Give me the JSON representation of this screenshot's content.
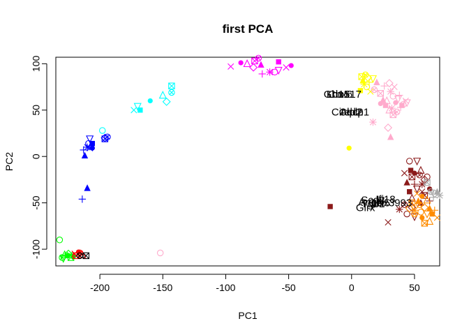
{
  "chart_data": {
    "type": "scatter",
    "title": "first PCA",
    "xlabel": "PC1",
    "ylabel": "PC2",
    "xlim": [
      -235,
      70
    ],
    "ylim": [
      -118,
      107
    ],
    "x_ticks": [
      -200,
      -150,
      -100,
      -50,
      0,
      50
    ],
    "y_ticks": [
      -100,
      -50,
      0,
      50,
      100
    ],
    "grid": false,
    "legend": "none",
    "colors": {
      "green": "#00ff00",
      "red": "#ff0000",
      "black": "#000000",
      "blue": "#0000ff",
      "cyan": "#00ffff",
      "magenta": "#ff00ff",
      "yellow": "#ffff00",
      "pink": "#ffaacc",
      "darkred": "#8b1a1a",
      "orange": "#ff8c00",
      "gray": "#a9a9a9"
    },
    "series": [
      {
        "color": "green",
        "points": [
          [
            -232,
            -90
          ],
          [
            -229,
            -110
          ],
          [
            -226,
            -107
          ],
          [
            -224,
            -106
          ],
          [
            -221,
            -108
          ],
          [
            -228,
            -106
          ],
          [
            -223,
            -109
          ],
          [
            -230,
            -109
          ],
          [
            -225,
            -105
          ]
        ]
      },
      {
        "color": "red",
        "points": [
          [
            -220,
            -105
          ],
          [
            -217,
            -103
          ],
          [
            -214,
            -106
          ],
          [
            -219,
            -107
          ],
          [
            -216,
            -104
          ]
        ]
      },
      {
        "color": "black",
        "points": [
          [
            -211,
            -107
          ],
          [
            -216,
            -107
          ]
        ]
      },
      {
        "color": "blue",
        "points": [
          [
            -212,
            1
          ],
          [
            -213,
            7
          ],
          [
            -210,
            10
          ],
          [
            -209,
            14
          ],
          [
            -208,
            19
          ],
          [
            -206,
            14
          ],
          [
            -208,
            9
          ],
          [
            -206,
            9
          ],
          [
            -207,
            12
          ],
          [
            -196,
            19
          ],
          [
            -194,
            21
          ],
          [
            -196,
            20
          ],
          [
            -210,
            -34
          ],
          [
            -214,
            -46
          ]
        ]
      },
      {
        "color": "cyan",
        "points": [
          [
            -198,
            28
          ],
          [
            -170,
            54
          ],
          [
            -168,
            50
          ],
          [
            -173,
            50
          ],
          [
            -160,
            60
          ],
          [
            -150,
            66
          ],
          [
            -143,
            76
          ],
          [
            -143,
            69
          ],
          [
            -147,
            59
          ]
        ]
      },
      {
        "color": "magenta",
        "points": [
          [
            -96,
            97
          ],
          [
            -88,
            101
          ],
          [
            -83,
            100
          ],
          [
            -77,
            103
          ],
          [
            -74,
            106
          ],
          [
            -78,
            96
          ],
          [
            -72,
            99
          ],
          [
            -71,
            89
          ],
          [
            -65,
            91
          ],
          [
            -61,
            91
          ],
          [
            -58,
            93
          ],
          [
            -58,
            102
          ],
          [
            -52,
            96
          ],
          [
            -48,
            98
          ]
        ]
      },
      {
        "color": "yellow",
        "points": [
          [
            8,
            86
          ],
          [
            11,
            88
          ],
          [
            13,
            85
          ],
          [
            9,
            82
          ],
          [
            14,
            80
          ],
          [
            10,
            78
          ],
          [
            12,
            75
          ],
          [
            17,
            84
          ],
          [
            7,
            71
          ],
          [
            15,
            70
          ],
          [
            -2,
            9
          ]
        ]
      },
      {
        "color": "pink",
        "points": [
          [
            20,
            80
          ],
          [
            26,
            76
          ],
          [
            31,
            70
          ],
          [
            33,
            65
          ],
          [
            37,
            62
          ],
          [
            40,
            55
          ],
          [
            43,
            60
          ],
          [
            35,
            58
          ],
          [
            28,
            60
          ],
          [
            23,
            68
          ],
          [
            18,
            72
          ],
          [
            30,
            79
          ],
          [
            25,
            61
          ],
          [
            38,
            66
          ],
          [
            32,
            52
          ],
          [
            41,
            56
          ],
          [
            44,
            58
          ],
          [
            27,
            55
          ],
          [
            34,
            75
          ],
          [
            23,
            57
          ],
          [
            30,
            50
          ],
          [
            33,
            45
          ],
          [
            36,
            48
          ],
          [
            29,
            31
          ],
          [
            31,
            21
          ],
          [
            39,
            53
          ],
          [
            17,
            37
          ],
          [
            -152,
            -104
          ]
        ]
      },
      {
        "color": "darkred",
        "points": [
          [
            46,
            -5
          ],
          [
            52,
            -5
          ],
          [
            47,
            -15
          ],
          [
            42,
            -18
          ],
          [
            50,
            -18
          ],
          [
            55,
            -15
          ],
          [
            48,
            -22
          ],
          [
            54,
            -20
          ],
          [
            58,
            -25
          ],
          [
            44,
            -28
          ],
          [
            50,
            -30
          ],
          [
            56,
            -30
          ],
          [
            60,
            -22
          ],
          [
            52,
            -35
          ],
          [
            46,
            -38
          ],
          [
            56,
            -38
          ],
          [
            62,
            -35
          ],
          [
            48,
            -45
          ],
          [
            58,
            -42
          ],
          [
            42,
            -52
          ],
          [
            48,
            -55
          ],
          [
            55,
            -50
          ],
          [
            62,
            -48
          ],
          [
            38,
            -57
          ],
          [
            44,
            -62
          ],
          [
            50,
            -65
          ],
          [
            -17,
            -54
          ],
          [
            29,
            -71
          ]
        ]
      },
      {
        "color": "orange",
        "points": [
          [
            52,
            -40
          ],
          [
            56,
            -43
          ],
          [
            60,
            -47
          ],
          [
            48,
            -50
          ],
          [
            54,
            -52
          ],
          [
            58,
            -55
          ],
          [
            62,
            -56
          ],
          [
            66,
            -58
          ],
          [
            50,
            -58
          ],
          [
            55,
            -60
          ],
          [
            60,
            -62
          ],
          [
            64,
            -62
          ],
          [
            68,
            -66
          ],
          [
            56,
            -66
          ],
          [
            62,
            -70
          ],
          [
            58,
            -72
          ],
          [
            50,
            -62
          ],
          [
            46,
            -56
          ],
          [
            53,
            -48
          ]
        ]
      },
      {
        "color": "gray",
        "points": [
          [
            60,
            -28
          ],
          [
            63,
            -38
          ],
          [
            66,
            -40
          ],
          [
            68,
            -38
          ],
          [
            65,
            -44
          ],
          [
            70,
            -42
          ]
        ]
      }
    ],
    "annotations": [
      {
        "text": "Gbn1",
        "x": -12,
        "y": 67
      },
      {
        "text": "Cbx6",
        "x": -9,
        "y": 67
      },
      {
        "text": "Ln1517",
        "x": -6,
        "y": 67
      },
      {
        "text": "Cited2",
        "x": -4,
        "y": 48
      },
      {
        "text": "Alpl2",
        "x": 0,
        "y": 48
      },
      {
        "text": "Cdcp1",
        "x": 2,
        "y": 48
      },
      {
        "text": "Scd2",
        "x": 17,
        "y": -47
      },
      {
        "text": "Ang4",
        "x": 15,
        "y": -49
      },
      {
        "text": "Tgb2",
        "x": 17,
        "y": -51
      },
      {
        "text": "Ifi18",
        "x": 27,
        "y": -46
      },
      {
        "text": "Col5",
        "x": 22,
        "y": -50
      },
      {
        "text": "Lhx3993",
        "x": 32,
        "y": -50
      },
      {
        "text": "Glrx",
        "x": 11,
        "y": -55
      }
    ]
  }
}
